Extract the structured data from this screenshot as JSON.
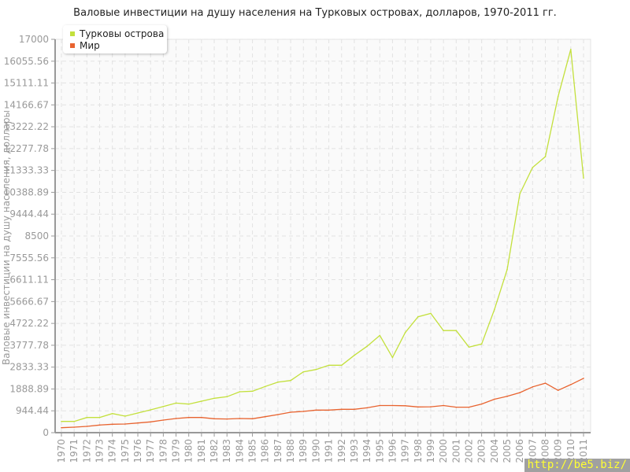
{
  "chart_data": {
    "type": "line",
    "title": "Валовые инвестиции на душу населения на Турковых островах, долларов, 1970-2011 гг.",
    "ylabel": "Валовые инвестиции на душу населения, доллары",
    "xlabel": "",
    "ylim": [
      0,
      17000
    ],
    "yticks": [
      "0",
      "944.44",
      "1888.89",
      "2833.33",
      "3777.78",
      "4722.22",
      "5666.67",
      "6611.11",
      "7555.56",
      "8500",
      "9444.44",
      "10388.89",
      "11333.33",
      "12277.78",
      "13222.22",
      "14166.67",
      "15111.11",
      "16055.56",
      "17000"
    ],
    "grid": true,
    "legend_position": "top-left",
    "x": [
      "1970",
      "1971",
      "1972",
      "1973",
      "1974",
      "1975",
      "1976",
      "1977",
      "1978",
      "1979",
      "1980",
      "1981",
      "1982",
      "1983",
      "1984",
      "1985",
      "1986",
      "1987",
      "1988",
      "1989",
      "1990",
      "1991",
      "1992",
      "1993",
      "1994",
      "1995",
      "1996",
      "1997",
      "1998",
      "1999",
      "2000",
      "2001",
      "2002",
      "2003",
      "2004",
      "2005",
      "2006",
      "2007",
      "2008",
      "2009",
      "2010",
      "2011"
    ],
    "series": [
      {
        "name": "Турковы острова",
        "color": "#c3e03c",
        "values": [
          486,
          486,
          656,
          656,
          826,
          714,
          850,
          986,
          1133,
          1280,
          1235,
          1360,
          1485,
          1553,
          1768,
          1791,
          1995,
          2187,
          2255,
          2629,
          2731,
          2913,
          2913,
          3343,
          3733,
          4203,
          3251,
          4328,
          5008,
          5155,
          4413,
          4413,
          3696,
          3832,
          5318,
          7048,
          10322,
          11461,
          11931,
          14528,
          16568,
          11002
        ]
      },
      {
        "name": "Мир",
        "color": "#e8632f",
        "values": [
          215,
          238,
          272,
          329,
          363,
          374,
          419,
          465,
          544,
          612,
          657,
          657,
          601,
          590,
          612,
          601,
          691,
          782,
          884,
          918,
          975,
          975,
          1009,
          1009,
          1075,
          1174,
          1174,
          1163,
          1112,
          1120,
          1174,
          1101,
          1101,
          1237,
          1446,
          1570,
          1731,
          1978,
          2138,
          1830,
          2077,
          2350
        ]
      }
    ]
  },
  "watermark": "http://be5.biz/"
}
